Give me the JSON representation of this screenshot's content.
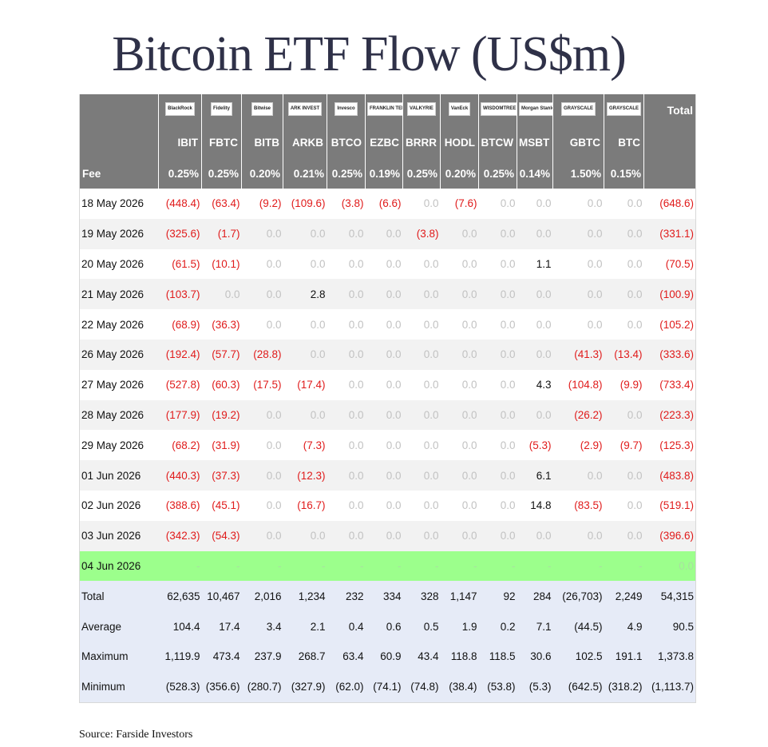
{
  "title": "Bitcoin ETF Flow (US$m)",
  "source": "Source: Farside Investors",
  "colors": {
    "header_bg": "#7b7b7b",
    "negative": "#e01b1b",
    "zero": "#c2c2c2",
    "pending_row": "#9cff8c",
    "stats_bg": "#e6ebf7"
  },
  "header": {
    "total_label": "Total",
    "fee_label": "Fee",
    "logos": [
      "BlackRock",
      "Fidelity",
      "Bitwise",
      "ARK INVEST",
      "Invesco",
      "FRANKLIN TEMPLETON",
      "VALKYRIE",
      "VanEck",
      "WISDOMTREE",
      "Morgan Stanley",
      "GRAYSCALE",
      "GRAYSCALE"
    ],
    "tickers": [
      "IBIT",
      "FBTC",
      "BITB",
      "ARKB",
      "BTCO",
      "EZBC",
      "BRRR",
      "HODL",
      "BTCW",
      "MSBT",
      "GBTC",
      "BTC"
    ],
    "fees": [
      "0.25%",
      "0.25%",
      "0.20%",
      "0.21%",
      "0.25%",
      "0.19%",
      "0.25%",
      "0.20%",
      "0.25%",
      "0.14%",
      "1.50%",
      "0.15%"
    ]
  },
  "rows": [
    {
      "date": "18 May 2026",
      "values": [
        "(448.4)",
        "(63.4)",
        "(9.2)",
        "(109.6)",
        "(3.8)",
        "(6.6)",
        "0.0",
        "(7.6)",
        "0.0",
        "0.0",
        "0.0",
        "0.0"
      ],
      "total": "(648.6)"
    },
    {
      "date": "19 May 2026",
      "values": [
        "(325.6)",
        "(1.7)",
        "0.0",
        "0.0",
        "0.0",
        "0.0",
        "(3.8)",
        "0.0",
        "0.0",
        "0.0",
        "0.0",
        "0.0"
      ],
      "total": "(331.1)"
    },
    {
      "date": "20 May 2026",
      "values": [
        "(61.5)",
        "(10.1)",
        "0.0",
        "0.0",
        "0.0",
        "0.0",
        "0.0",
        "0.0",
        "0.0",
        "1.1",
        "0.0",
        "0.0"
      ],
      "total": "(70.5)"
    },
    {
      "date": "21 May 2026",
      "values": [
        "(103.7)",
        "0.0",
        "0.0",
        "2.8",
        "0.0",
        "0.0",
        "0.0",
        "0.0",
        "0.0",
        "0.0",
        "0.0",
        "0.0"
      ],
      "total": "(100.9)"
    },
    {
      "date": "22 May 2026",
      "values": [
        "(68.9)",
        "(36.3)",
        "0.0",
        "0.0",
        "0.0",
        "0.0",
        "0.0",
        "0.0",
        "0.0",
        "0.0",
        "0.0",
        "0.0"
      ],
      "total": "(105.2)"
    },
    {
      "date": "26 May 2026",
      "values": [
        "(192.4)",
        "(57.7)",
        "(28.8)",
        "0.0",
        "0.0",
        "0.0",
        "0.0",
        "0.0",
        "0.0",
        "0.0",
        "(41.3)",
        "(13.4)"
      ],
      "total": "(333.6)"
    },
    {
      "date": "27 May 2026",
      "values": [
        "(527.8)",
        "(60.3)",
        "(17.5)",
        "(17.4)",
        "0.0",
        "0.0",
        "0.0",
        "0.0",
        "0.0",
        "4.3",
        "(104.8)",
        "(9.9)"
      ],
      "total": "(733.4)"
    },
    {
      "date": "28 May 2026",
      "values": [
        "(177.9)",
        "(19.2)",
        "0.0",
        "0.0",
        "0.0",
        "0.0",
        "0.0",
        "0.0",
        "0.0",
        "0.0",
        "(26.2)",
        "0.0"
      ],
      "total": "(223.3)"
    },
    {
      "date": "29 May 2026",
      "values": [
        "(68.2)",
        "(31.9)",
        "0.0",
        "(7.3)",
        "0.0",
        "0.0",
        "0.0",
        "0.0",
        "0.0",
        "(5.3)",
        "(2.9)",
        "(9.7)"
      ],
      "total": "(125.3)"
    },
    {
      "date": "01 Jun 2026",
      "values": [
        "(440.3)",
        "(37.3)",
        "0.0",
        "(12.3)",
        "0.0",
        "0.0",
        "0.0",
        "0.0",
        "0.0",
        "6.1",
        "0.0",
        "0.0"
      ],
      "total": "(483.8)"
    },
    {
      "date": "02 Jun 2026",
      "values": [
        "(388.6)",
        "(45.1)",
        "0.0",
        "(16.7)",
        "0.0",
        "0.0",
        "0.0",
        "0.0",
        "0.0",
        "14.8",
        "(83.5)",
        "0.0"
      ],
      "total": "(519.1)"
    },
    {
      "date": "03 Jun 2026",
      "values": [
        "(342.3)",
        "(54.3)",
        "0.0",
        "0.0",
        "0.0",
        "0.0",
        "0.0",
        "0.0",
        "0.0",
        "0.0",
        "0.0",
        "0.0"
      ],
      "total": "(396.6)"
    },
    {
      "date": "04 Jun 2026",
      "pending": true,
      "values": [
        "-",
        "-",
        "-",
        "-",
        "-",
        "-",
        "-",
        "-",
        "-",
        "-",
        "-",
        "-"
      ],
      "total": "0.0"
    }
  ],
  "stats": [
    {
      "label": "Total",
      "values": [
        "62,635",
        "10,467",
        "2,016",
        "1,234",
        "232",
        "334",
        "328",
        "1,147",
        "92",
        "284",
        "(26,703)",
        "2,249"
      ],
      "total": "54,315"
    },
    {
      "label": "Average",
      "values": [
        "104.4",
        "17.4",
        "3.4",
        "2.1",
        "0.4",
        "0.6",
        "0.5",
        "1.9",
        "0.2",
        "7.1",
        "(44.5)",
        "4.9"
      ],
      "total": "90.5"
    },
    {
      "label": "Maximum",
      "values": [
        "1,119.9",
        "473.4",
        "237.9",
        "268.7",
        "63.4",
        "60.9",
        "43.4",
        "118.8",
        "118.5",
        "30.6",
        "102.5",
        "191.1"
      ],
      "total": "1,373.8"
    },
    {
      "label": "Minimum",
      "values": [
        "(528.3)",
        "(356.6)",
        "(280.7)",
        "(327.9)",
        "(62.0)",
        "(74.1)",
        "(74.8)",
        "(38.4)",
        "(53.8)",
        "(5.3)",
        "(642.5)",
        "(318.2)"
      ],
      "total": "(1,113.7)"
    }
  ]
}
